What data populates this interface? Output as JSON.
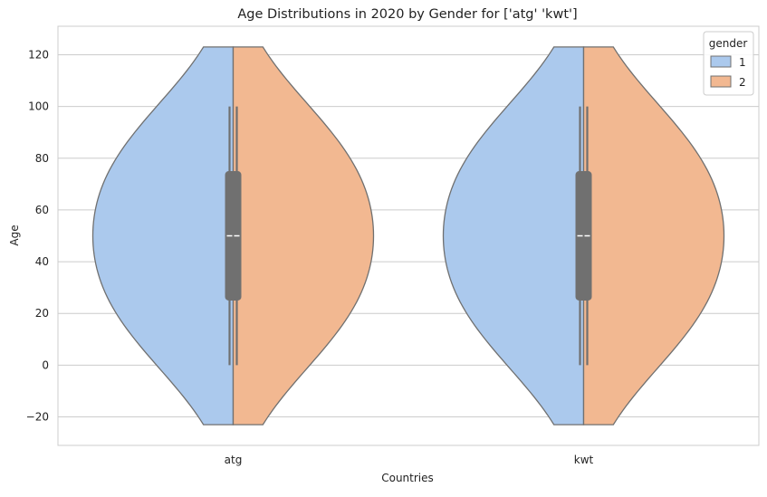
{
  "chart_data": {
    "type": "violin",
    "title": "Age Distributions in 2020 by Gender for ['atg' 'kwt']",
    "xlabel": "Countries",
    "ylabel": "Age",
    "categories": [
      "atg",
      "kwt"
    ],
    "ylim": [
      -31,
      131
    ],
    "yticks": [
      -20,
      0,
      20,
      40,
      60,
      80,
      100,
      120
    ],
    "grid": true,
    "split": true,
    "legend": {
      "title": "gender",
      "placement": "top-right",
      "entries": [
        "1",
        "2"
      ]
    },
    "series": [
      {
        "name": "1",
        "color": "#abc9ed",
        "violins": [
          {
            "category": "atg",
            "min": 0,
            "q1": 25,
            "median": 50,
            "q3": 75,
            "max": 100,
            "kde_range": [
              -23,
              123
            ]
          },
          {
            "category": "kwt",
            "min": 0,
            "q1": 25,
            "median": 50,
            "q3": 75,
            "max": 100,
            "kde_range": [
              -23,
              123
            ]
          }
        ]
      },
      {
        "name": "2",
        "color": "#f2b891",
        "violins": [
          {
            "category": "atg",
            "min": 0,
            "q1": 25,
            "median": 50,
            "q3": 75,
            "max": 100,
            "kde_range": [
              -23,
              123
            ]
          },
          {
            "category": "kwt",
            "min": 0,
            "q1": 25,
            "median": 50,
            "q3": 75,
            "max": 100,
            "kde_range": [
              -23,
              123
            ]
          }
        ]
      }
    ]
  }
}
